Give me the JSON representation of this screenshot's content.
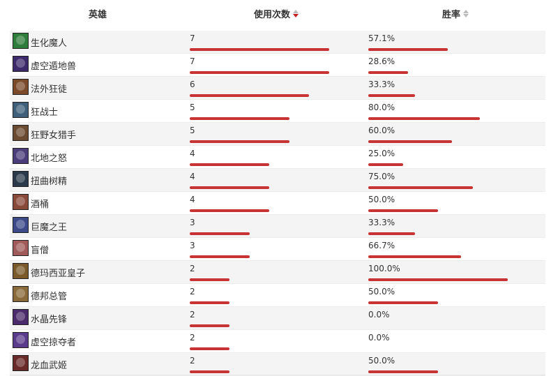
{
  "header": {
    "hero_label": "英雄",
    "uses_label": "使用次数",
    "rate_label": "胜率"
  },
  "colors": {
    "bar": "#c83434",
    "active_sort": "#c81d1d",
    "inactive_sort": "#bbbbbb"
  },
  "max_uses": 7,
  "rows": [
    {
      "hero": "生化魔人",
      "uses": "7",
      "uses_num": 7,
      "rate": "57.1%",
      "rate_num": 57.1,
      "avatar": "#2f7d3a"
    },
    {
      "hero": "虚空遁地兽",
      "uses": "7",
      "uses_num": 7,
      "rate": "28.6%",
      "rate_num": 28.6,
      "avatar": "#3c2a6a"
    },
    {
      "hero": "法外狂徒",
      "uses": "6",
      "uses_num": 6,
      "rate": "33.3%",
      "rate_num": 33.3,
      "avatar": "#7a4a2a"
    },
    {
      "hero": "狂战士",
      "uses": "5",
      "uses_num": 5,
      "rate": "80.0%",
      "rate_num": 80.0,
      "avatar": "#3f5f7a"
    },
    {
      "hero": "狂野女猎手",
      "uses": "5",
      "uses_num": 5,
      "rate": "60.0%",
      "rate_num": 60.0,
      "avatar": "#6a4a30"
    },
    {
      "hero": "北地之怒",
      "uses": "4",
      "uses_num": 4,
      "rate": "25.0%",
      "rate_num": 25.0,
      "avatar": "#4a3d7a"
    },
    {
      "hero": "扭曲树精",
      "uses": "4",
      "uses_num": 4,
      "rate": "75.0%",
      "rate_num": 75.0,
      "avatar": "#2a3a4a"
    },
    {
      "hero": "酒桶",
      "uses": "4",
      "uses_num": 4,
      "rate": "50.0%",
      "rate_num": 50.0,
      "avatar": "#8a4a3a"
    },
    {
      "hero": "巨魔之王",
      "uses": "3",
      "uses_num": 3,
      "rate": "33.3%",
      "rate_num": 33.3,
      "avatar": "#3d4a8a"
    },
    {
      "hero": "盲僧",
      "uses": "3",
      "uses_num": 3,
      "rate": "66.7%",
      "rate_num": 66.7,
      "avatar": "#a05a5a"
    },
    {
      "hero": "德玛西亚皇子",
      "uses": "2",
      "uses_num": 2,
      "rate": "100.0%",
      "rate_num": 100.0,
      "avatar": "#7a5a2a"
    },
    {
      "hero": "德邦总管",
      "uses": "2",
      "uses_num": 2,
      "rate": "50.0%",
      "rate_num": 50.0,
      "avatar": "#8a6a3a"
    },
    {
      "hero": "水晶先锋",
      "uses": "2",
      "uses_num": 2,
      "rate": "0.0%",
      "rate_num": 0.0,
      "avatar": "#4a2a6a"
    },
    {
      "hero": "虚空掠夺者",
      "uses": "2",
      "uses_num": 2,
      "rate": "0.0%",
      "rate_num": 0.0,
      "avatar": "#5a3a8a"
    },
    {
      "hero": "龙血武姬",
      "uses": "2",
      "uses_num": 2,
      "rate": "50.0%",
      "rate_num": 50.0,
      "avatar": "#6a2a2a"
    }
  ]
}
